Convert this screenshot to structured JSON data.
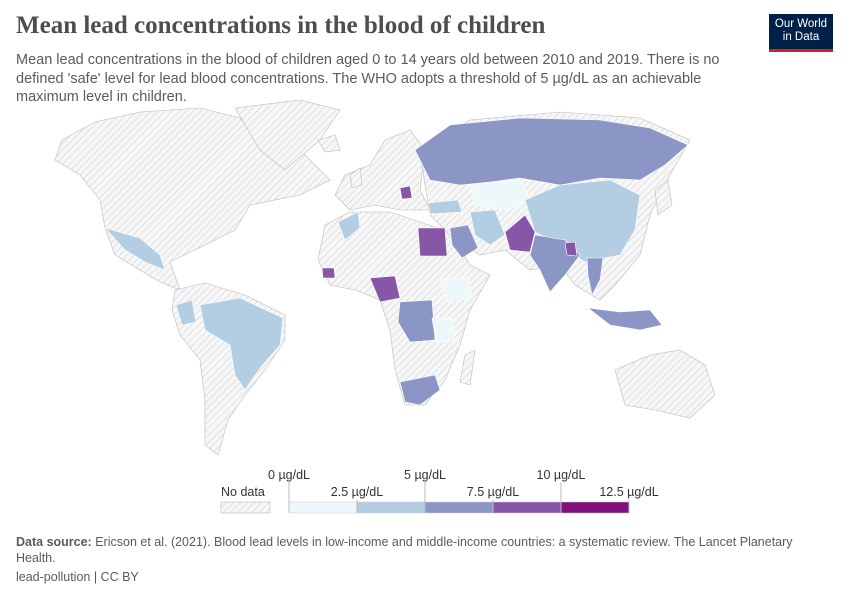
{
  "title": "Mean lead concentrations in the blood of children",
  "subtitle": "Mean lead concentrations in the blood of children aged 0 to 14 years old between 2010 and 2019. There is no defined 'safe' level for lead blood concentrations. The WHO adopts a threshold of 5 µg/dL as an achievable maximum level in children.",
  "logo": {
    "line1": "Our World",
    "line2": "in Data"
  },
  "legend": {
    "no_data": "No data",
    "ticks": [
      "0 µg/dL",
      "2.5 µg/dL",
      "5 µg/dL",
      "7.5 µg/dL",
      "10 µg/dL",
      "12.5 µg/dL"
    ],
    "colors": [
      "#edf8fb",
      "#b3cde3",
      "#8c96c6",
      "#8856a7",
      "#810f7c"
    ],
    "no_data_color": "#e6e6e6"
  },
  "map_regions": [
    {
      "region": "Russia",
      "bin": 2
    },
    {
      "region": "China",
      "bin": 1
    },
    {
      "region": "India",
      "bin": 2
    },
    {
      "region": "Pakistan",
      "bin": 3
    },
    {
      "region": "Bangladesh",
      "bin": 3
    },
    {
      "region": "Egypt",
      "bin": 3
    },
    {
      "region": "Nigeria",
      "bin": 3
    },
    {
      "region": "Senegal",
      "bin": 3
    },
    {
      "region": "Serbia",
      "bin": 3
    },
    {
      "region": "DR Congo",
      "bin": 2
    },
    {
      "region": "South Africa",
      "bin": 2
    },
    {
      "region": "Ethiopia",
      "bin": 0
    },
    {
      "region": "Tanzania",
      "bin": 0
    },
    {
      "region": "Indonesia",
      "bin": 2
    },
    {
      "region": "Thailand",
      "bin": 2
    },
    {
      "region": "Iran",
      "bin": 1
    },
    {
      "region": "Turkey",
      "bin": 1
    },
    {
      "region": "Morocco",
      "bin": 1
    },
    {
      "region": "Mexico",
      "bin": 1
    },
    {
      "region": "Brazil",
      "bin": 1
    },
    {
      "region": "Peru",
      "bin": 1
    },
    {
      "region": "Saudi Arabia",
      "bin": 2
    },
    {
      "region": "Kazakhstan",
      "bin": 0
    }
  ],
  "source": {
    "label": "Data source:",
    "text": "Ericson et al. (2021). Blood lead levels in low-income and middle-income countries: a systematic review. The Lancet Planetary Health."
  },
  "footer": "lead-pollution | CC BY"
}
